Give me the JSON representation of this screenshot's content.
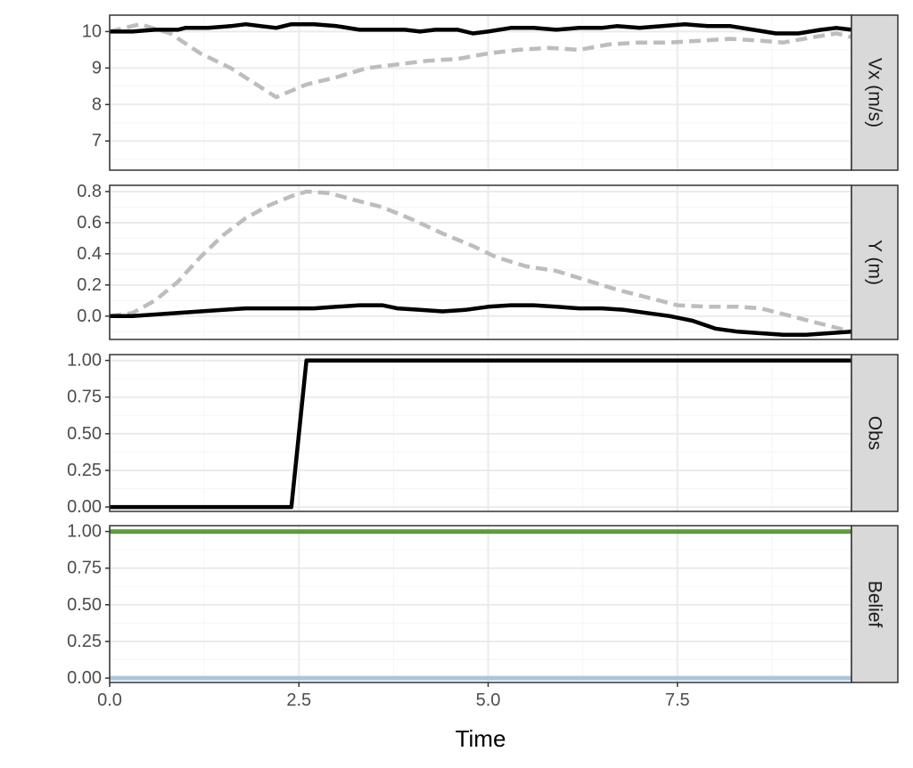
{
  "colors": {
    "grid_major": "#ebebeb",
    "grid_minor": "#f5f5f5",
    "panel_border": "#333333",
    "strip_fill": "#d9d9d9",
    "solid_series": "#000000",
    "dashed_series": "#bdbdbd",
    "belief_high": "#5c9c3c",
    "belief_low": "#a9c6de"
  },
  "chart_data": {
    "type": "line",
    "xlabel": "Time",
    "x_range": [
      0,
      9.8
    ],
    "x_ticks": [
      0.0,
      2.5,
      5.0,
      7.5
    ],
    "x_tick_labels": [
      "0.0",
      "2.5",
      "5.0",
      "7.5"
    ],
    "panels": [
      {
        "strip_label": "Vx (m/s)",
        "y_range": [
          6.2,
          10.45
        ],
        "y_ticks": [
          7,
          8,
          9,
          10
        ],
        "y_tick_labels": [
          "7",
          "8",
          "9",
          "10"
        ],
        "series": [
          {
            "style": "dashed",
            "points": [
              [
                0,
                10.0
              ],
              [
                0.4,
                10.2
              ],
              [
                0.8,
                9.95
              ],
              [
                1.2,
                9.4
              ],
              [
                1.6,
                9.0
              ],
              [
                1.9,
                8.6
              ],
              [
                2.2,
                8.2
              ],
              [
                2.6,
                8.55
              ],
              [
                3.0,
                8.75
              ],
              [
                3.4,
                9.0
              ],
              [
                3.8,
                9.1
              ],
              [
                4.2,
                9.2
              ],
              [
                4.6,
                9.25
              ],
              [
                5.0,
                9.4
              ],
              [
                5.4,
                9.5
              ],
              [
                5.8,
                9.55
              ],
              [
                6.2,
                9.5
              ],
              [
                6.6,
                9.65
              ],
              [
                7.0,
                9.7
              ],
              [
                7.4,
                9.7
              ],
              [
                7.8,
                9.75
              ],
              [
                8.2,
                9.8
              ],
              [
                8.6,
                9.75
              ],
              [
                8.9,
                9.7
              ],
              [
                9.3,
                9.85
              ],
              [
                9.6,
                9.95
              ],
              [
                9.8,
                9.85
              ]
            ]
          },
          {
            "style": "solid",
            "points": [
              [
                0,
                10.0
              ],
              [
                0.3,
                10.0
              ],
              [
                0.6,
                10.05
              ],
              [
                0.9,
                10.05
              ],
              [
                1.0,
                10.1
              ],
              [
                1.3,
                10.1
              ],
              [
                1.6,
                10.15
              ],
              [
                1.8,
                10.2
              ],
              [
                2.0,
                10.15
              ],
              [
                2.2,
                10.1
              ],
              [
                2.4,
                10.2
              ],
              [
                2.7,
                10.2
              ],
              [
                3.0,
                10.15
              ],
              [
                3.3,
                10.05
              ],
              [
                3.6,
                10.05
              ],
              [
                3.9,
                10.05
              ],
              [
                4.1,
                10.0
              ],
              [
                4.3,
                10.05
              ],
              [
                4.6,
                10.05
              ],
              [
                4.8,
                9.95
              ],
              [
                5.0,
                10.0
              ],
              [
                5.3,
                10.1
              ],
              [
                5.6,
                10.1
              ],
              [
                5.9,
                10.05
              ],
              [
                6.2,
                10.1
              ],
              [
                6.5,
                10.1
              ],
              [
                6.7,
                10.15
              ],
              [
                7.0,
                10.1
              ],
              [
                7.3,
                10.15
              ],
              [
                7.6,
                10.2
              ],
              [
                7.9,
                10.15
              ],
              [
                8.2,
                10.15
              ],
              [
                8.5,
                10.05
              ],
              [
                8.8,
                9.95
              ],
              [
                9.1,
                9.95
              ],
              [
                9.4,
                10.05
              ],
              [
                9.6,
                10.1
              ],
              [
                9.8,
                10.05
              ]
            ]
          }
        ]
      },
      {
        "strip_label": "Y (m)",
        "y_range": [
          -0.15,
          0.84
        ],
        "y_ticks": [
          0.0,
          0.2,
          0.4,
          0.6,
          0.8
        ],
        "y_tick_labels": [
          "0.0",
          "0.2",
          "0.4",
          "0.6",
          "0.8"
        ],
        "series": [
          {
            "style": "dashed",
            "points": [
              [
                0,
                0.0
              ],
              [
                0.3,
                0.02
              ],
              [
                0.6,
                0.1
              ],
              [
                0.9,
                0.22
              ],
              [
                1.2,
                0.38
              ],
              [
                1.5,
                0.52
              ],
              [
                1.8,
                0.63
              ],
              [
                2.1,
                0.71
              ],
              [
                2.4,
                0.77
              ],
              [
                2.6,
                0.8
              ],
              [
                2.9,
                0.79
              ],
              [
                3.2,
                0.75
              ],
              [
                3.6,
                0.7
              ],
              [
                4.0,
                0.62
              ],
              [
                4.4,
                0.53
              ],
              [
                4.8,
                0.45
              ],
              [
                5.1,
                0.38
              ],
              [
                5.5,
                0.32
              ],
              [
                5.9,
                0.29
              ],
              [
                6.3,
                0.23
              ],
              [
                6.7,
                0.17
              ],
              [
                7.1,
                0.12
              ],
              [
                7.5,
                0.07
              ],
              [
                7.9,
                0.06
              ],
              [
                8.3,
                0.06
              ],
              [
                8.6,
                0.05
              ],
              [
                9.0,
                0.0
              ],
              [
                9.4,
                -0.05
              ],
              [
                9.8,
                -0.1
              ]
            ]
          },
          {
            "style": "solid",
            "points": [
              [
                0,
                0.0
              ],
              [
                0.3,
                0.0
              ],
              [
                0.6,
                0.01
              ],
              [
                0.9,
                0.02
              ],
              [
                1.2,
                0.03
              ],
              [
                1.5,
                0.04
              ],
              [
                1.8,
                0.05
              ],
              [
                2.1,
                0.05
              ],
              [
                2.4,
                0.05
              ],
              [
                2.7,
                0.05
              ],
              [
                3.0,
                0.06
              ],
              [
                3.3,
                0.07
              ],
              [
                3.6,
                0.07
              ],
              [
                3.8,
                0.05
              ],
              [
                4.1,
                0.04
              ],
              [
                4.4,
                0.03
              ],
              [
                4.7,
                0.04
              ],
              [
                5.0,
                0.06
              ],
              [
                5.3,
                0.07
              ],
              [
                5.6,
                0.07
              ],
              [
                5.9,
                0.06
              ],
              [
                6.2,
                0.05
              ],
              [
                6.5,
                0.05
              ],
              [
                6.8,
                0.04
              ],
              [
                7.1,
                0.02
              ],
              [
                7.4,
                0.0
              ],
              [
                7.7,
                -0.03
              ],
              [
                8.0,
                -0.08
              ],
              [
                8.3,
                -0.1
              ],
              [
                8.6,
                -0.11
              ],
              [
                8.9,
                -0.12
              ],
              [
                9.2,
                -0.12
              ],
              [
                9.5,
                -0.11
              ],
              [
                9.8,
                -0.1
              ]
            ]
          }
        ]
      },
      {
        "strip_label": "Obs",
        "y_range": [
          -0.03,
          1.04
        ],
        "y_ticks": [
          0.0,
          0.25,
          0.5,
          0.75,
          1.0
        ],
        "y_tick_labels": [
          "0.00",
          "0.25",
          "0.50",
          "0.75",
          "1.00"
        ],
        "series": [
          {
            "style": "solid",
            "points": [
              [
                0,
                0.0
              ],
              [
                2.4,
                0.0
              ],
              [
                2.6,
                1.0
              ],
              [
                9.8,
                1.0
              ]
            ]
          }
        ]
      },
      {
        "strip_label": "Belief",
        "y_range": [
          -0.03,
          1.04
        ],
        "y_ticks": [
          0.0,
          0.25,
          0.5,
          0.75,
          1.0
        ],
        "y_tick_labels": [
          "0.00",
          "0.25",
          "0.50",
          "0.75",
          "1.00"
        ],
        "series": [
          {
            "style": "solid",
            "color_key": "belief_high",
            "points": [
              [
                0,
                1.0
              ],
              [
                9.8,
                1.0
              ]
            ]
          },
          {
            "style": "solid",
            "color_key": "belief_low",
            "points": [
              [
                0,
                0.0
              ],
              [
                9.8,
                0.0
              ]
            ]
          }
        ]
      }
    ]
  }
}
